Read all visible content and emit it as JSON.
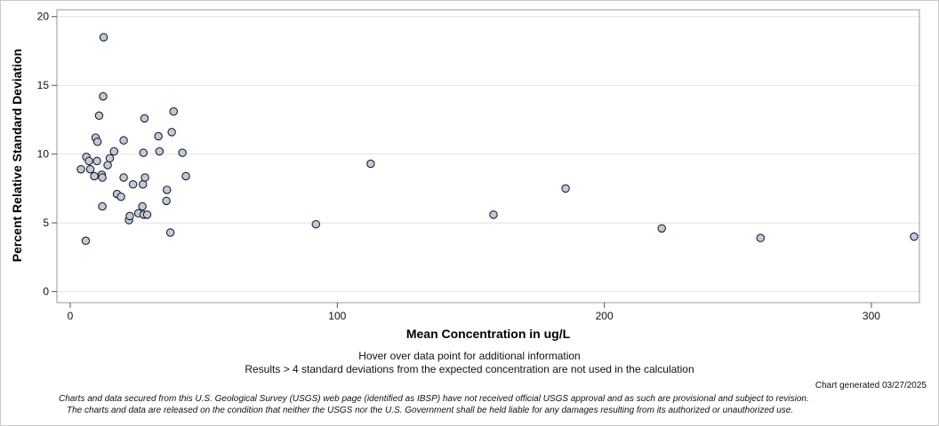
{
  "chart_data": {
    "type": "scatter",
    "xlabel": "Mean Concentration in ug/L",
    "ylabel": "Percent Relative Standard Deviation",
    "xlim": [
      -5,
      318
    ],
    "ylim": [
      -0.8,
      20.5
    ],
    "x_ticks": [
      0,
      100,
      200,
      300
    ],
    "y_ticks": [
      0,
      5,
      10,
      15,
      20
    ],
    "grid": "horizontal",
    "marker_fill": "#bfcbdc",
    "marker_edge": "#222222",
    "points": [
      {
        "x": 4,
        "y": 8.9
      },
      {
        "x": 5.8,
        "y": 3.7
      },
      {
        "x": 6,
        "y": 9.8
      },
      {
        "x": 7,
        "y": 9.5
      },
      {
        "x": 7.5,
        "y": 8.9
      },
      {
        "x": 9,
        "y": 8.4
      },
      {
        "x": 9.5,
        "y": 11.2
      },
      {
        "x": 10,
        "y": 9.5
      },
      {
        "x": 10.2,
        "y": 10.9
      },
      {
        "x": 10.8,
        "y": 12.8
      },
      {
        "x": 11.8,
        "y": 8.5
      },
      {
        "x": 12,
        "y": 8.3
      },
      {
        "x": 12,
        "y": 6.2
      },
      {
        "x": 12.3,
        "y": 14.2
      },
      {
        "x": 12.5,
        "y": 18.5
      },
      {
        "x": 14,
        "y": 9.2
      },
      {
        "x": 14.8,
        "y": 9.7
      },
      {
        "x": 16.4,
        "y": 10.2
      },
      {
        "x": 17.5,
        "y": 7.1
      },
      {
        "x": 19,
        "y": 6.9
      },
      {
        "x": 20,
        "y": 8.3
      },
      {
        "x": 20,
        "y": 11
      },
      {
        "x": 22,
        "y": 5.2
      },
      {
        "x": 22.3,
        "y": 5.5
      },
      {
        "x": 23.5,
        "y": 7.8
      },
      {
        "x": 25.5,
        "y": 5.7
      },
      {
        "x": 27,
        "y": 6.2
      },
      {
        "x": 27.2,
        "y": 7.8
      },
      {
        "x": 27.4,
        "y": 10.1
      },
      {
        "x": 27.5,
        "y": 5.6
      },
      {
        "x": 27.8,
        "y": 12.6
      },
      {
        "x": 28,
        "y": 8.3
      },
      {
        "x": 28.8,
        "y": 5.6
      },
      {
        "x": 33,
        "y": 11.3
      },
      {
        "x": 33.4,
        "y": 10.2
      },
      {
        "x": 36,
        "y": 6.6
      },
      {
        "x": 36.2,
        "y": 7.4
      },
      {
        "x": 37.5,
        "y": 4.3
      },
      {
        "x": 38,
        "y": 11.6
      },
      {
        "x": 38.7,
        "y": 13.1
      },
      {
        "x": 42,
        "y": 10.1
      },
      {
        "x": 43.3,
        "y": 8.4
      },
      {
        "x": 92,
        "y": 4.9
      },
      {
        "x": 112.5,
        "y": 9.3
      },
      {
        "x": 158.5,
        "y": 5.6
      },
      {
        "x": 185.5,
        "y": 7.5
      },
      {
        "x": 221.5,
        "y": 4.6
      },
      {
        "x": 258.5,
        "y": 3.9
      },
      {
        "x": 316,
        "y": 4
      }
    ]
  },
  "notes": {
    "hover": "Hover over data point for additional information",
    "results": "Results > 4 standard deviations from the expected concentration are not used in the calculation",
    "generated": "Chart generated 03/27/2025",
    "disclaimer_1": "Charts and data secured from this U.S. Geological Survey (USGS) web page (identified as IBSP) have not received official USGS approval and as such are provisional and subject to revision.",
    "disclaimer_2": "The charts and data are released on the condition that neither the USGS nor the U.S. Government shall be held liable for any damages resulting from its authorized or unauthorized use."
  }
}
